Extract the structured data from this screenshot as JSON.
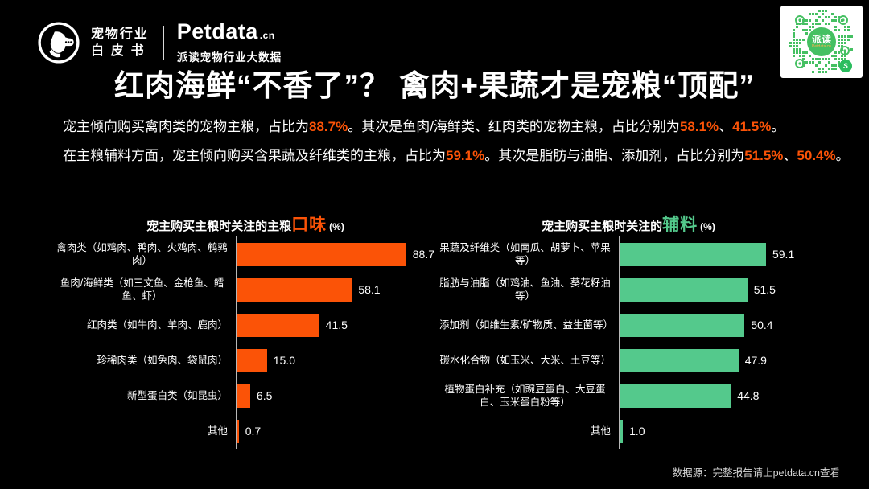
{
  "brand": {
    "whitepaper_line1": "宠物行业",
    "whitepaper_line2": "白皮书",
    "name": "Petdata",
    "suffix": ".cn",
    "subtitle": "派读宠物行业大数据",
    "qr_center_text": "派读",
    "qr_center_sub": "Petdata.cn",
    "accent_orange": "#fb5307",
    "accent_green": "#54c98c",
    "qr_green": "#45c062"
  },
  "title": "红肉海鲜“不香了”？ 禽肉+果蔬才是宠粮“顶配”",
  "intro": {
    "lines": [
      {
        "segments": [
          {
            "text": "宠主倾向购买禽肉类的宠物主粮，占比为",
            "hl": false
          },
          {
            "text": "88.7%",
            "hl": true
          },
          {
            "text": "。其次是鱼肉/海鲜类、红肉类的宠物主粮，占比分别为",
            "hl": false
          },
          {
            "text": "58.1%",
            "hl": true
          },
          {
            "text": "、",
            "hl": false
          },
          {
            "text": "41.5%",
            "hl": true
          },
          {
            "text": "。",
            "hl": false
          }
        ]
      },
      {
        "segments": [
          {
            "text": "在主粮辅料方面，宠主倾向购买含果蔬及纤维类的主粮，占比为",
            "hl": false
          },
          {
            "text": "59.1%",
            "hl": true
          },
          {
            "text": "。其次是脂肪与油脂、添加剂，占比分别为",
            "hl": false
          },
          {
            "text": "51.5%",
            "hl": true
          },
          {
            "text": "、",
            "hl": false
          },
          {
            "text": "50.4%",
            "hl": true
          },
          {
            "text": "。",
            "hl": false
          }
        ]
      }
    ]
  },
  "chart_data": [
    {
      "type": "bar",
      "orientation": "horizontal",
      "title": "宠主购买主粮时关注的主粮口味 (%)",
      "title_prefix": "宠主购买主粮时关注的主粮",
      "title_keyword": "口味",
      "title_suffix": "(%)",
      "keyword_color": "#fb5307",
      "bar_color": "#fb5307",
      "unit": "%",
      "xlim": [
        0,
        100
      ],
      "grid": false,
      "legend": null,
      "categories": [
        "禽肉类（如鸡肉、鸭肉、火鸡肉、鹌鹑肉）",
        "鱼肉/海鲜类（如三文鱼、金枪鱼、鳕鱼、虾）",
        "红肉类（如牛肉、羊肉、鹿肉）",
        "珍稀肉类（如兔肉、袋鼠肉）",
        "新型蛋白类（如昆虫）",
        "其他"
      ],
      "values": [
        88.7,
        58.1,
        41.5,
        15.0,
        6.5,
        0.7
      ],
      "value_labels": [
        "88.7",
        "58.1",
        "41.5",
        "15.0",
        "6.5",
        "0.7"
      ]
    },
    {
      "type": "bar",
      "orientation": "horizontal",
      "title": "宠主购买主粮时关注的辅料 (%)",
      "title_prefix": "宠主购买主粮时关注的",
      "title_keyword": "辅料",
      "title_suffix": "(%)",
      "keyword_color": "#54c98c",
      "bar_color": "#54c98c",
      "unit": "%",
      "xlim": [
        0,
        80
      ],
      "grid": false,
      "legend": null,
      "categories": [
        "果蔬及纤维类（如南瓜、胡萝卜、苹果等）",
        "脂肪与油脂（如鸡油、鱼油、葵花籽油等）",
        "添加剂（如维生素/矿物质、益生菌等）",
        "碳水化合物（如玉米、大米、土豆等）",
        "植物蛋白补充（如豌豆蛋白、大豆蛋白、玉米蛋白粉等）",
        "其他"
      ],
      "values": [
        59.1,
        51.5,
        50.4,
        47.9,
        44.8,
        1.0
      ],
      "value_labels": [
        "59.1",
        "51.5",
        "50.4",
        "47.9",
        "44.8",
        "1.0"
      ]
    }
  ],
  "footer": {
    "source_note": "数据源：完整报告请上petdata.cn查看"
  }
}
